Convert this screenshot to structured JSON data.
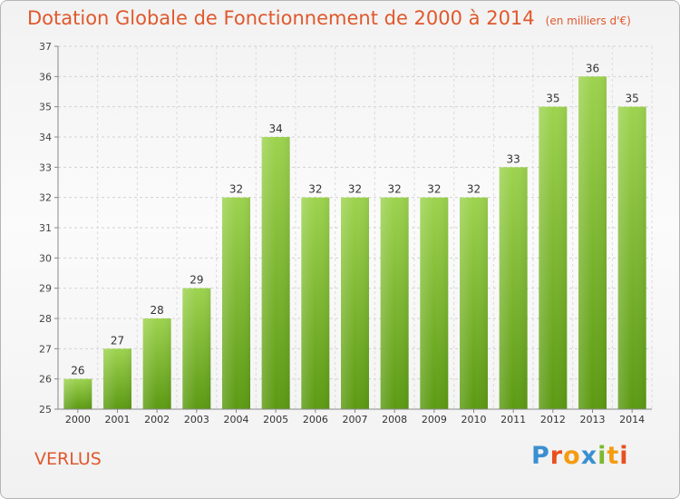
{
  "header": {
    "title": "Dotation Globale de Fonctionnement de 2000 à 2014",
    "unit": "(en milliers d'€)"
  },
  "footer": {
    "commune": "VERLUS",
    "brand": "Proxiti"
  },
  "colors": {
    "title": "#e0582c",
    "bar_top": "#9dd34f",
    "bar_bottom": "#5c9a13",
    "grid": "#cfcfcf",
    "logo": [
      "#3a8fd1",
      "#e94f1d",
      "#f39c12",
      "#3a8fd1",
      "#7cb82f",
      "#f39c12",
      "#e94f1d"
    ]
  },
  "chart_data": {
    "type": "bar",
    "categories": [
      "2000",
      "2001",
      "2002",
      "2003",
      "2004",
      "2005",
      "2006",
      "2007",
      "2008",
      "2009",
      "2010",
      "2011",
      "2012",
      "2013",
      "2014"
    ],
    "values": [
      26,
      27,
      28,
      29,
      32,
      34,
      32,
      32,
      32,
      32,
      32,
      33,
      35,
      36,
      35
    ],
    "ylim": [
      25,
      37
    ],
    "yticks": [
      25,
      26,
      27,
      28,
      29,
      30,
      31,
      32,
      33,
      34,
      35,
      36,
      37
    ],
    "title": "Dotation Globale de Fonctionnement de 2000 à 2014",
    "xlabel": "",
    "ylabel": "",
    "grid": true
  }
}
